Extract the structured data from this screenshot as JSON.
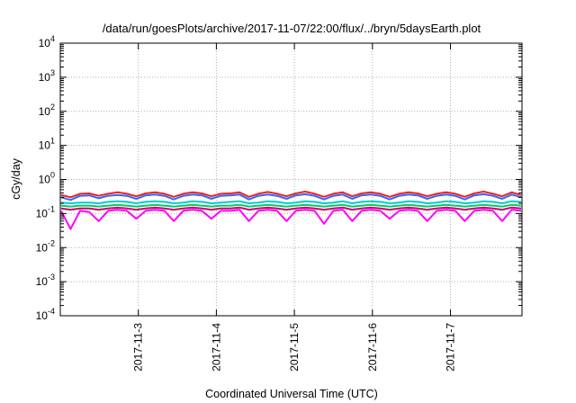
{
  "chart_data": {
    "type": "line",
    "title": "/data/run/goesPlots/archive/2017-11-07/22:00/flux/../bryn/5daysEarth.plot",
    "xlabel": "Coordinated Universal Time (UTC)",
    "ylabel": "cGy/day",
    "yscale": "log",
    "ylim": [
      0.0001,
      10000
    ],
    "xlim": [
      "2017-11-02 00:00",
      "2017-11-07 22:00"
    ],
    "grid": true,
    "x_ticks": [
      "2017-11-3",
      "2017-11-4",
      "2017-11-5",
      "2017-11-6",
      "2017-11-7"
    ],
    "y_ticks": [
      {
        "base": "10",
        "exp": "-4",
        "value": 0.0001
      },
      {
        "base": "10",
        "exp": "-3",
        "value": 0.001
      },
      {
        "base": "10",
        "exp": "-2",
        "value": 0.01
      },
      {
        "base": "10",
        "exp": "-1",
        "value": 0.1
      },
      {
        "base": "10",
        "exp": "0",
        "value": 1
      },
      {
        "base": "10",
        "exp": "1",
        "value": 10
      },
      {
        "base": "10",
        "exp": "2",
        "value": 100
      },
      {
        "base": "10",
        "exp": "3",
        "value": 1000
      },
      {
        "base": "10",
        "exp": "4",
        "value": 10000
      }
    ],
    "series": [
      {
        "color": "#ff00ff",
        "values": [
          0.12,
          0.035,
          0.12,
          0.11,
          0.06,
          0.12,
          0.13,
          0.12,
          0.07,
          0.12,
          0.13,
          0.12,
          0.06,
          0.12,
          0.13,
          0.12,
          0.07,
          0.12,
          0.12,
          0.13,
          0.06,
          0.12,
          0.13,
          0.12,
          0.06,
          0.12,
          0.13,
          0.12,
          0.05,
          0.12,
          0.13,
          0.06,
          0.12,
          0.13,
          0.12,
          0.07,
          0.12,
          0.13,
          0.12,
          0.06,
          0.12,
          0.13,
          0.12,
          0.06,
          0.12,
          0.13,
          0.12,
          0.06,
          0.13,
          0.12
        ]
      },
      {
        "color": "#cc0066",
        "values": [
          0.14,
          0.13,
          0.14,
          0.14,
          0.13,
          0.14,
          0.15,
          0.14,
          0.13,
          0.14,
          0.15,
          0.14,
          0.13,
          0.14,
          0.15,
          0.14,
          0.13,
          0.14,
          0.14,
          0.15,
          0.13,
          0.14,
          0.15,
          0.14,
          0.13,
          0.14,
          0.15,
          0.14,
          0.13,
          0.14,
          0.15,
          0.13,
          0.14,
          0.15,
          0.14,
          0.13,
          0.14,
          0.15,
          0.14,
          0.13,
          0.14,
          0.15,
          0.14,
          0.13,
          0.14,
          0.15,
          0.14,
          0.13,
          0.15,
          0.14
        ]
      },
      {
        "color": "#00cc66",
        "values": [
          0.17,
          0.16,
          0.17,
          0.17,
          0.16,
          0.17,
          0.18,
          0.17,
          0.16,
          0.17,
          0.18,
          0.17,
          0.16,
          0.17,
          0.18,
          0.17,
          0.16,
          0.17,
          0.17,
          0.18,
          0.16,
          0.17,
          0.18,
          0.17,
          0.16,
          0.17,
          0.18,
          0.17,
          0.16,
          0.17,
          0.18,
          0.16,
          0.17,
          0.18,
          0.17,
          0.16,
          0.17,
          0.18,
          0.17,
          0.16,
          0.17,
          0.18,
          0.17,
          0.16,
          0.17,
          0.18,
          0.17,
          0.16,
          0.18,
          0.17
        ]
      },
      {
        "color": "#00cccc",
        "values": [
          0.21,
          0.2,
          0.21,
          0.21,
          0.2,
          0.22,
          0.23,
          0.22,
          0.2,
          0.22,
          0.23,
          0.22,
          0.2,
          0.21,
          0.23,
          0.22,
          0.2,
          0.21,
          0.22,
          0.23,
          0.2,
          0.21,
          0.23,
          0.22,
          0.2,
          0.21,
          0.23,
          0.22,
          0.2,
          0.21,
          0.23,
          0.2,
          0.22,
          0.23,
          0.22,
          0.2,
          0.21,
          0.23,
          0.22,
          0.2,
          0.21,
          0.23,
          0.22,
          0.2,
          0.21,
          0.23,
          0.22,
          0.2,
          0.23,
          0.22
        ]
      },
      {
        "color": "#3366ff",
        "values": [
          0.3,
          0.25,
          0.33,
          0.34,
          0.28,
          0.33,
          0.35,
          0.33,
          0.27,
          0.34,
          0.36,
          0.33,
          0.26,
          0.33,
          0.36,
          0.34,
          0.27,
          0.33,
          0.34,
          0.36,
          0.26,
          0.33,
          0.36,
          0.33,
          0.27,
          0.34,
          0.37,
          0.33,
          0.26,
          0.33,
          0.36,
          0.27,
          0.34,
          0.36,
          0.33,
          0.26,
          0.33,
          0.36,
          0.34,
          0.27,
          0.33,
          0.36,
          0.33,
          0.26,
          0.34,
          0.37,
          0.33,
          0.27,
          0.36,
          0.3
        ]
      },
      {
        "color": "#ee2222",
        "values": [
          0.35,
          0.3,
          0.38,
          0.39,
          0.33,
          0.38,
          0.42,
          0.38,
          0.32,
          0.39,
          0.42,
          0.38,
          0.31,
          0.38,
          0.42,
          0.39,
          0.32,
          0.38,
          0.39,
          0.42,
          0.31,
          0.38,
          0.43,
          0.38,
          0.32,
          0.39,
          0.44,
          0.38,
          0.31,
          0.38,
          0.42,
          0.32,
          0.39,
          0.42,
          0.38,
          0.31,
          0.38,
          0.42,
          0.39,
          0.32,
          0.38,
          0.42,
          0.38,
          0.31,
          0.39,
          0.44,
          0.38,
          0.32,
          0.42,
          0.35
        ]
      }
    ]
  }
}
